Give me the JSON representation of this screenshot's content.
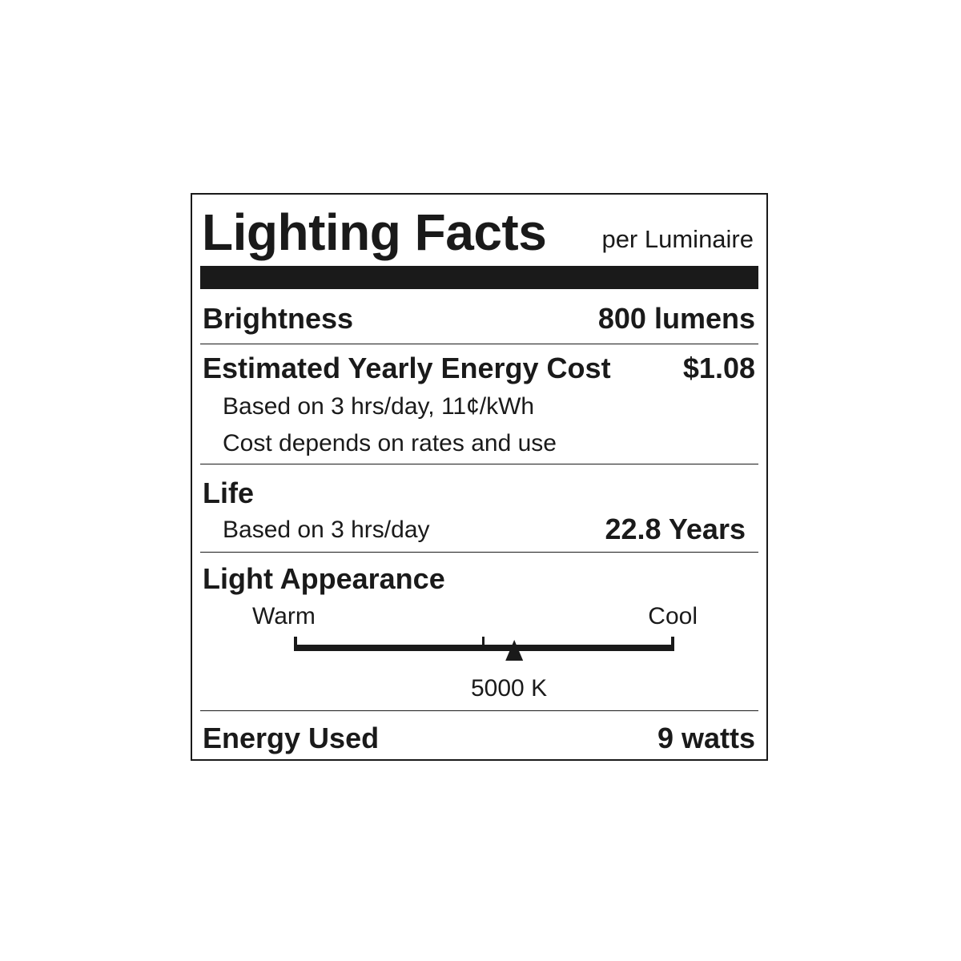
{
  "header": {
    "title": "Lighting Facts",
    "subtitle": "per Luminaire"
  },
  "brightness": {
    "label": "Brightness",
    "value": "800 lumens"
  },
  "energy_cost": {
    "label": "Estimated Yearly Energy Cost",
    "value": "$1.08",
    "note1": "Based on 3 hrs/day, 11¢/kWh",
    "note2": "Cost depends on rates and use"
  },
  "life": {
    "label": "Life",
    "note": "Based on 3 hrs/day",
    "value": "22.8 Years"
  },
  "light_appearance": {
    "label": "Light Appearance",
    "warm_label": "Warm",
    "cool_label": "Cool",
    "value": "5000 K",
    "marker_fraction": 0.58
  },
  "energy_used": {
    "label": "Energy Used",
    "value": "9 watts"
  },
  "colors": {
    "ink": "#1a1a1a",
    "background": "#ffffff"
  }
}
